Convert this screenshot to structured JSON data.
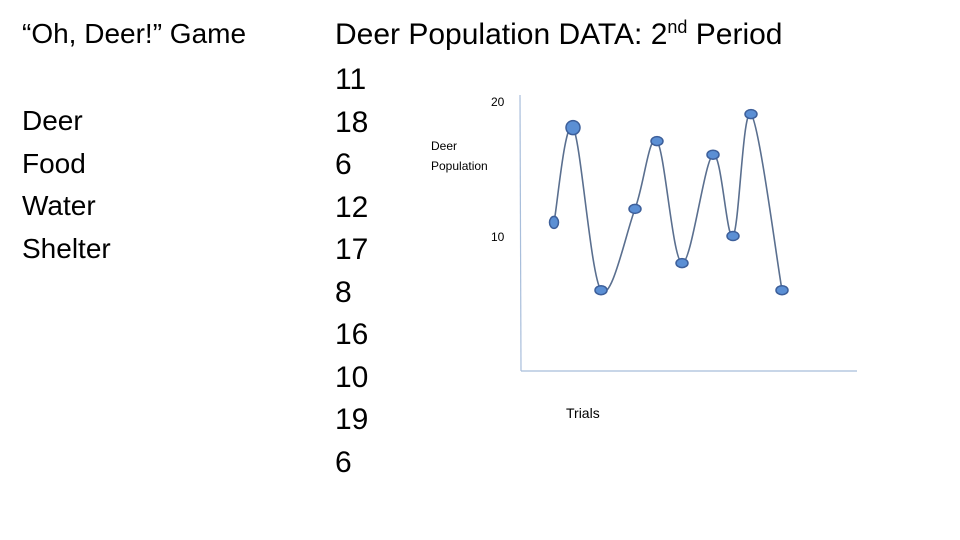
{
  "slide": {
    "left_title": "“Oh, Deer!” Game",
    "factors": [
      "Deer",
      "Food",
      "Water",
      "Shelter"
    ],
    "data_title": {
      "prefix": "Deer Population DATA: 2",
      "superscript": "nd",
      "suffix": " Period"
    },
    "population_values": [
      "11",
      "18",
      "6",
      "12",
      "17",
      "8",
      "16",
      "10",
      "19",
      "6"
    ]
  },
  "chart_data": {
    "type": "line",
    "x": [
      1,
      2,
      3,
      4,
      5,
      6,
      7,
      8,
      9,
      10
    ],
    "series": [
      {
        "values": [
          11,
          18,
          6,
          12,
          17,
          8,
          16,
          10,
          19,
          6
        ]
      }
    ],
    "ylabel": [
      "Deer",
      "Population"
    ],
    "xlabel": "Trials",
    "yticks": [
      20,
      10
    ],
    "ylim": [
      0,
      20
    ],
    "grid": false,
    "smooth": true,
    "colors": {
      "line": "#5a6f8f",
      "marker_fill": "#5b8fd4",
      "marker_edge": "#3d5f9a",
      "axis": "#a8bedb"
    }
  }
}
